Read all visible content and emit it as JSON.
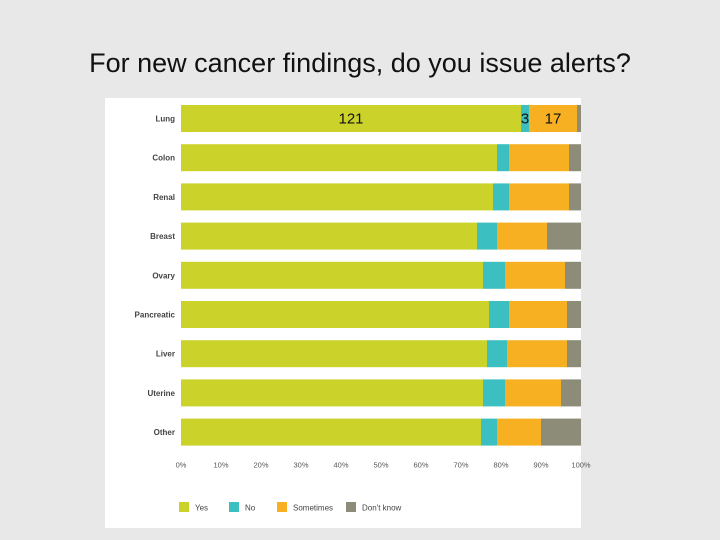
{
  "title": "For new cancer findings, do you issue alerts?",
  "chart_data": {
    "type": "bar",
    "orientation": "horizontal",
    "stacked": true,
    "title": "For new cancer findings, do you issue alerts?",
    "categories": [
      "Lung",
      "Colon",
      "Renal",
      "Breast",
      "Ovary",
      "Pancreatic",
      "Liver",
      "Uterine",
      "Other"
    ],
    "series": [
      {
        "name": "Yes",
        "color": "#cbd22a",
        "values": [
          85,
          79,
          78,
          74,
          75.5,
          77,
          76.5,
          75.5,
          75
        ]
      },
      {
        "name": "No",
        "color": "#3bbfc0",
        "values": [
          2,
          3,
          4,
          5,
          5.5,
          5,
          5,
          5.5,
          4
        ]
      },
      {
        "name": "Sometimes",
        "color": "#f6b022",
        "values": [
          12,
          15,
          15,
          12.5,
          15,
          14.5,
          15,
          14,
          11
        ]
      },
      {
        "name": "Don't know",
        "color": "#8c8c78",
        "values": [
          1,
          3,
          3,
          8.5,
          4,
          3.5,
          3.5,
          5,
          10
        ]
      }
    ],
    "xticks": [
      "0%",
      "10%",
      "20%",
      "30%",
      "40%",
      "50%",
      "60%",
      "70%",
      "80%",
      "90%",
      "100%"
    ],
    "xlim": [
      0,
      100
    ],
    "annotations": [
      {
        "category": "Lung",
        "series": "Yes",
        "text": "121"
      },
      {
        "category": "Lung",
        "series": "No",
        "text": "3"
      },
      {
        "category": "Lung",
        "series": "Sometimes",
        "text": "17"
      }
    ],
    "legend": "bottom",
    "grid": false
  }
}
